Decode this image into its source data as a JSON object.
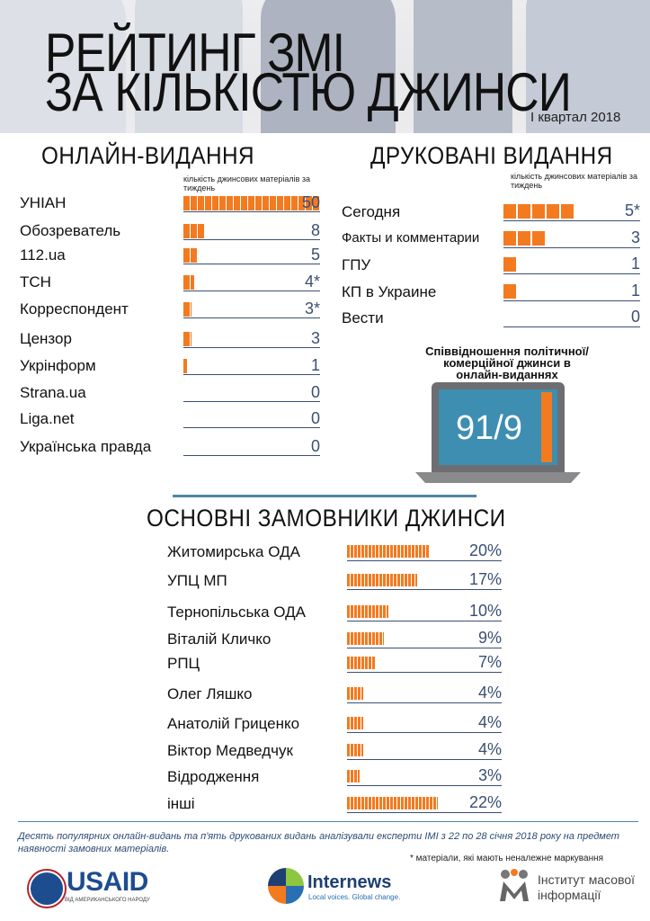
{
  "header": {
    "title_line1": "РЕЙТИНГ ЗМІ",
    "title_line2": "ЗА КІЛЬКІСТЮ ДЖИНСИ",
    "period": "I квартал 2018"
  },
  "online": {
    "title": "ОНЛАЙН-ВИДАННЯ",
    "note": "кількість джинсових матеріалів за тиждень",
    "items": [
      {
        "name": "УНІАН",
        "value": "50",
        "mark": ""
      },
      {
        "name": "Обозреватель",
        "value": "8",
        "mark": ""
      },
      {
        "name": "112.ua",
        "value": "5",
        "mark": ""
      },
      {
        "name": "ТСН",
        "value": "4",
        "mark": "*"
      },
      {
        "name": "Корреспондент",
        "value": "3",
        "mark": "*"
      },
      {
        "name": "Цензор",
        "value": "3",
        "mark": ""
      },
      {
        "name": "Укрінформ",
        "value": "1",
        "mark": ""
      },
      {
        "name": "Strana.ua",
        "value": "0",
        "mark": ""
      },
      {
        "name": "Liga.net",
        "value": "0",
        "mark": ""
      },
      {
        "name": "Українська правда",
        "value": "0",
        "mark": ""
      }
    ]
  },
  "print": {
    "title": "ДРУКОВАНІ ВИДАННЯ",
    "note": "кількість джинсових матеріалів за тиждень",
    "items": [
      {
        "name": "Сегодня",
        "value": "5",
        "mark": "*"
      },
      {
        "name": "Факты и комментарии",
        "value": "3",
        "mark": ""
      },
      {
        "name": "ГПУ",
        "value": "1",
        "mark": ""
      },
      {
        "name": "КП в Украине",
        "value": "1",
        "mark": ""
      },
      {
        "name": "Вести",
        "value": "0",
        "mark": ""
      }
    ]
  },
  "ratio": {
    "title": "Співвідношення політичної/комерційної джинси в онлайн-виданнях",
    "value": "91/9",
    "political": 91,
    "commercial": 9
  },
  "customers": {
    "title": "ОСНОВНІ ЗАМОВНИКИ ДЖИНСИ",
    "items": [
      {
        "name": "Житомирська ОДА",
        "value": "20%"
      },
      {
        "name": "УПЦ МП",
        "value": "17%"
      },
      {
        "name": "Тернопільська ОДА",
        "value": "10%"
      },
      {
        "name": "Віталій Кличко",
        "value": "9%"
      },
      {
        "name": "РПЦ",
        "value": "7%"
      },
      {
        "name": "Олег Ляшко",
        "value": "4%"
      },
      {
        "name": "Анатолій Гриценко",
        "value": "4%"
      },
      {
        "name": "Віктор Медведчук",
        "value": "4%"
      },
      {
        "name": "Відродження",
        "value": "3%"
      },
      {
        "name": "інші",
        "value": "22%"
      }
    ]
  },
  "footer": {
    "description": "Десять популярних онлайн-видань та п'ять друкованих видань аналізували експерти ІМІ з 22 по 28 січня 2018 року на предмет наявності замовних матеріалів.",
    "asterisk_note": "* матеріали, які мають неналежне маркування",
    "usaid": {
      "name": "USAID",
      "tagline": "ВІД АМЕРИКАНСЬКОГО НАРОДУ"
    },
    "internews": {
      "name": "Internews",
      "tagline": "Local voices. Global change."
    },
    "imi": {
      "line1": "Інститут масової",
      "line2": "інформації"
    }
  },
  "colors": {
    "bar": "#f47a20",
    "value_text": "#3b4f74",
    "divider": "#4e87a8",
    "laptop_screen": "#3d8eb0",
    "laptop_body": "#7b7b7e"
  },
  "chart_data": [
    {
      "type": "bar",
      "title": "ОНЛАЙН-ВИДАННЯ",
      "ylabel": "кількість джинсових матеріалів за тиждень",
      "categories": [
        "УНІАН",
        "Обозреватель",
        "112.ua",
        "ТСН",
        "Корреспондент",
        "Цензор",
        "Укрінформ",
        "Strana.ua",
        "Liga.net",
        "Українська правда"
      ],
      "values": [
        50,
        8,
        5,
        4,
        3,
        3,
        1,
        0,
        0,
        0
      ]
    },
    {
      "type": "bar",
      "title": "ДРУКОВАНІ ВИДАННЯ",
      "ylabel": "кількість джинсових матеріалів за тиждень",
      "categories": [
        "Сегодня",
        "Факты и комментарии",
        "ГПУ",
        "КП в Украине",
        "Вести"
      ],
      "values": [
        5,
        3,
        1,
        1,
        0
      ]
    },
    {
      "type": "bar",
      "title": "Співвідношення політичної/комерційної джинси в онлайн-виданнях",
      "categories": [
        "політична",
        "комерційна"
      ],
      "values": [
        91,
        9
      ]
    },
    {
      "type": "bar",
      "title": "ОСНОВНІ ЗАМОВНИКИ ДЖИНСИ",
      "categories": [
        "Житомирська ОДА",
        "УПЦ МП",
        "Тернопільська ОДА",
        "Віталій Кличко",
        "РПЦ",
        "Олег Ляшко",
        "Анатолій Гриценко",
        "Віктор Медведчук",
        "Відродження",
        "інші"
      ],
      "values": [
        20,
        17,
        10,
        9,
        7,
        4,
        4,
        4,
        3,
        22
      ]
    }
  ]
}
